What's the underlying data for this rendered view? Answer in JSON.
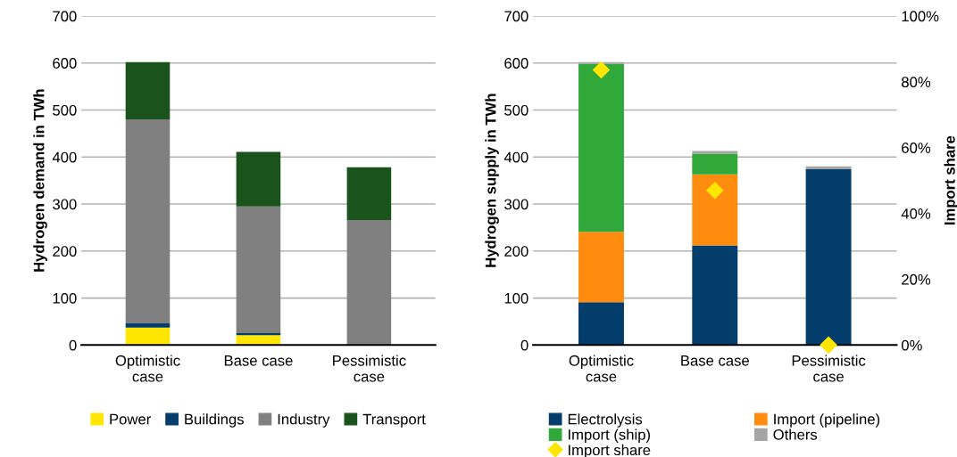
{
  "chart_data": [
    {
      "type": "bar",
      "stacked": true,
      "ylabel": "Hydrogen demand in TWh",
      "categories": [
        "Optimistic\ncase",
        "Base case",
        "Pessimistic\ncase"
      ],
      "series": [
        {
          "name": "Power",
          "color": "#ffe600",
          "values": [
            37,
            21,
            0
          ]
        },
        {
          "name": "Buildings",
          "color": "#033d6b",
          "values": [
            9,
            4,
            0
          ]
        },
        {
          "name": "Industry",
          "color": "#808080",
          "values": [
            434,
            270,
            266
          ]
        },
        {
          "name": "Transport",
          "color": "#1a531b",
          "values": [
            122,
            116,
            112
          ]
        }
      ],
      "ylim": [
        0,
        700
      ],
      "yticks": [
        0,
        100,
        200,
        300,
        400,
        500,
        600,
        700
      ],
      "grid": "y",
      "legend": "bottom"
    },
    {
      "type": "bar",
      "stacked": true,
      "ylabel": "Hydrogen supply in TWh",
      "y2label": "Import share",
      "categories": [
        "Optimistic\ncase",
        "Base case",
        "Pessimistic\ncase"
      ],
      "series": [
        {
          "name": "Electrolysis",
          "color": "#033d6b",
          "values": [
            91,
            212,
            374
          ]
        },
        {
          "name": "Import (pipeline)",
          "color": "#ff8c0e",
          "values": [
            150,
            151,
            0
          ]
        },
        {
          "name": "Import (ship)",
          "color": "#30a83a",
          "values": [
            357,
            44,
            0
          ]
        },
        {
          "name": "Others",
          "color": "#a5a5a5",
          "values": [
            4,
            6,
            6
          ]
        },
        {
          "name": "Import share",
          "type": "scatter",
          "axis": "y2",
          "marker": "diamond",
          "color": "#ffe600",
          "values": [
            83.6,
            47,
            0
          ]
        }
      ],
      "ylim": [
        0,
        700
      ],
      "yticks": [
        0,
        100,
        200,
        300,
        400,
        500,
        600,
        700
      ],
      "y2lim": [
        0,
        100
      ],
      "y2ticks": [
        {
          "value": 0,
          "label": "0%"
        },
        {
          "value": 20,
          "label": "20%"
        },
        {
          "value": 40,
          "label": "40%"
        },
        {
          "value": 60,
          "label": "60%"
        },
        {
          "value": 80,
          "label": "80%"
        },
        {
          "value": 100,
          "label": "100%"
        }
      ],
      "grid": "y",
      "legend": "bottom"
    }
  ]
}
